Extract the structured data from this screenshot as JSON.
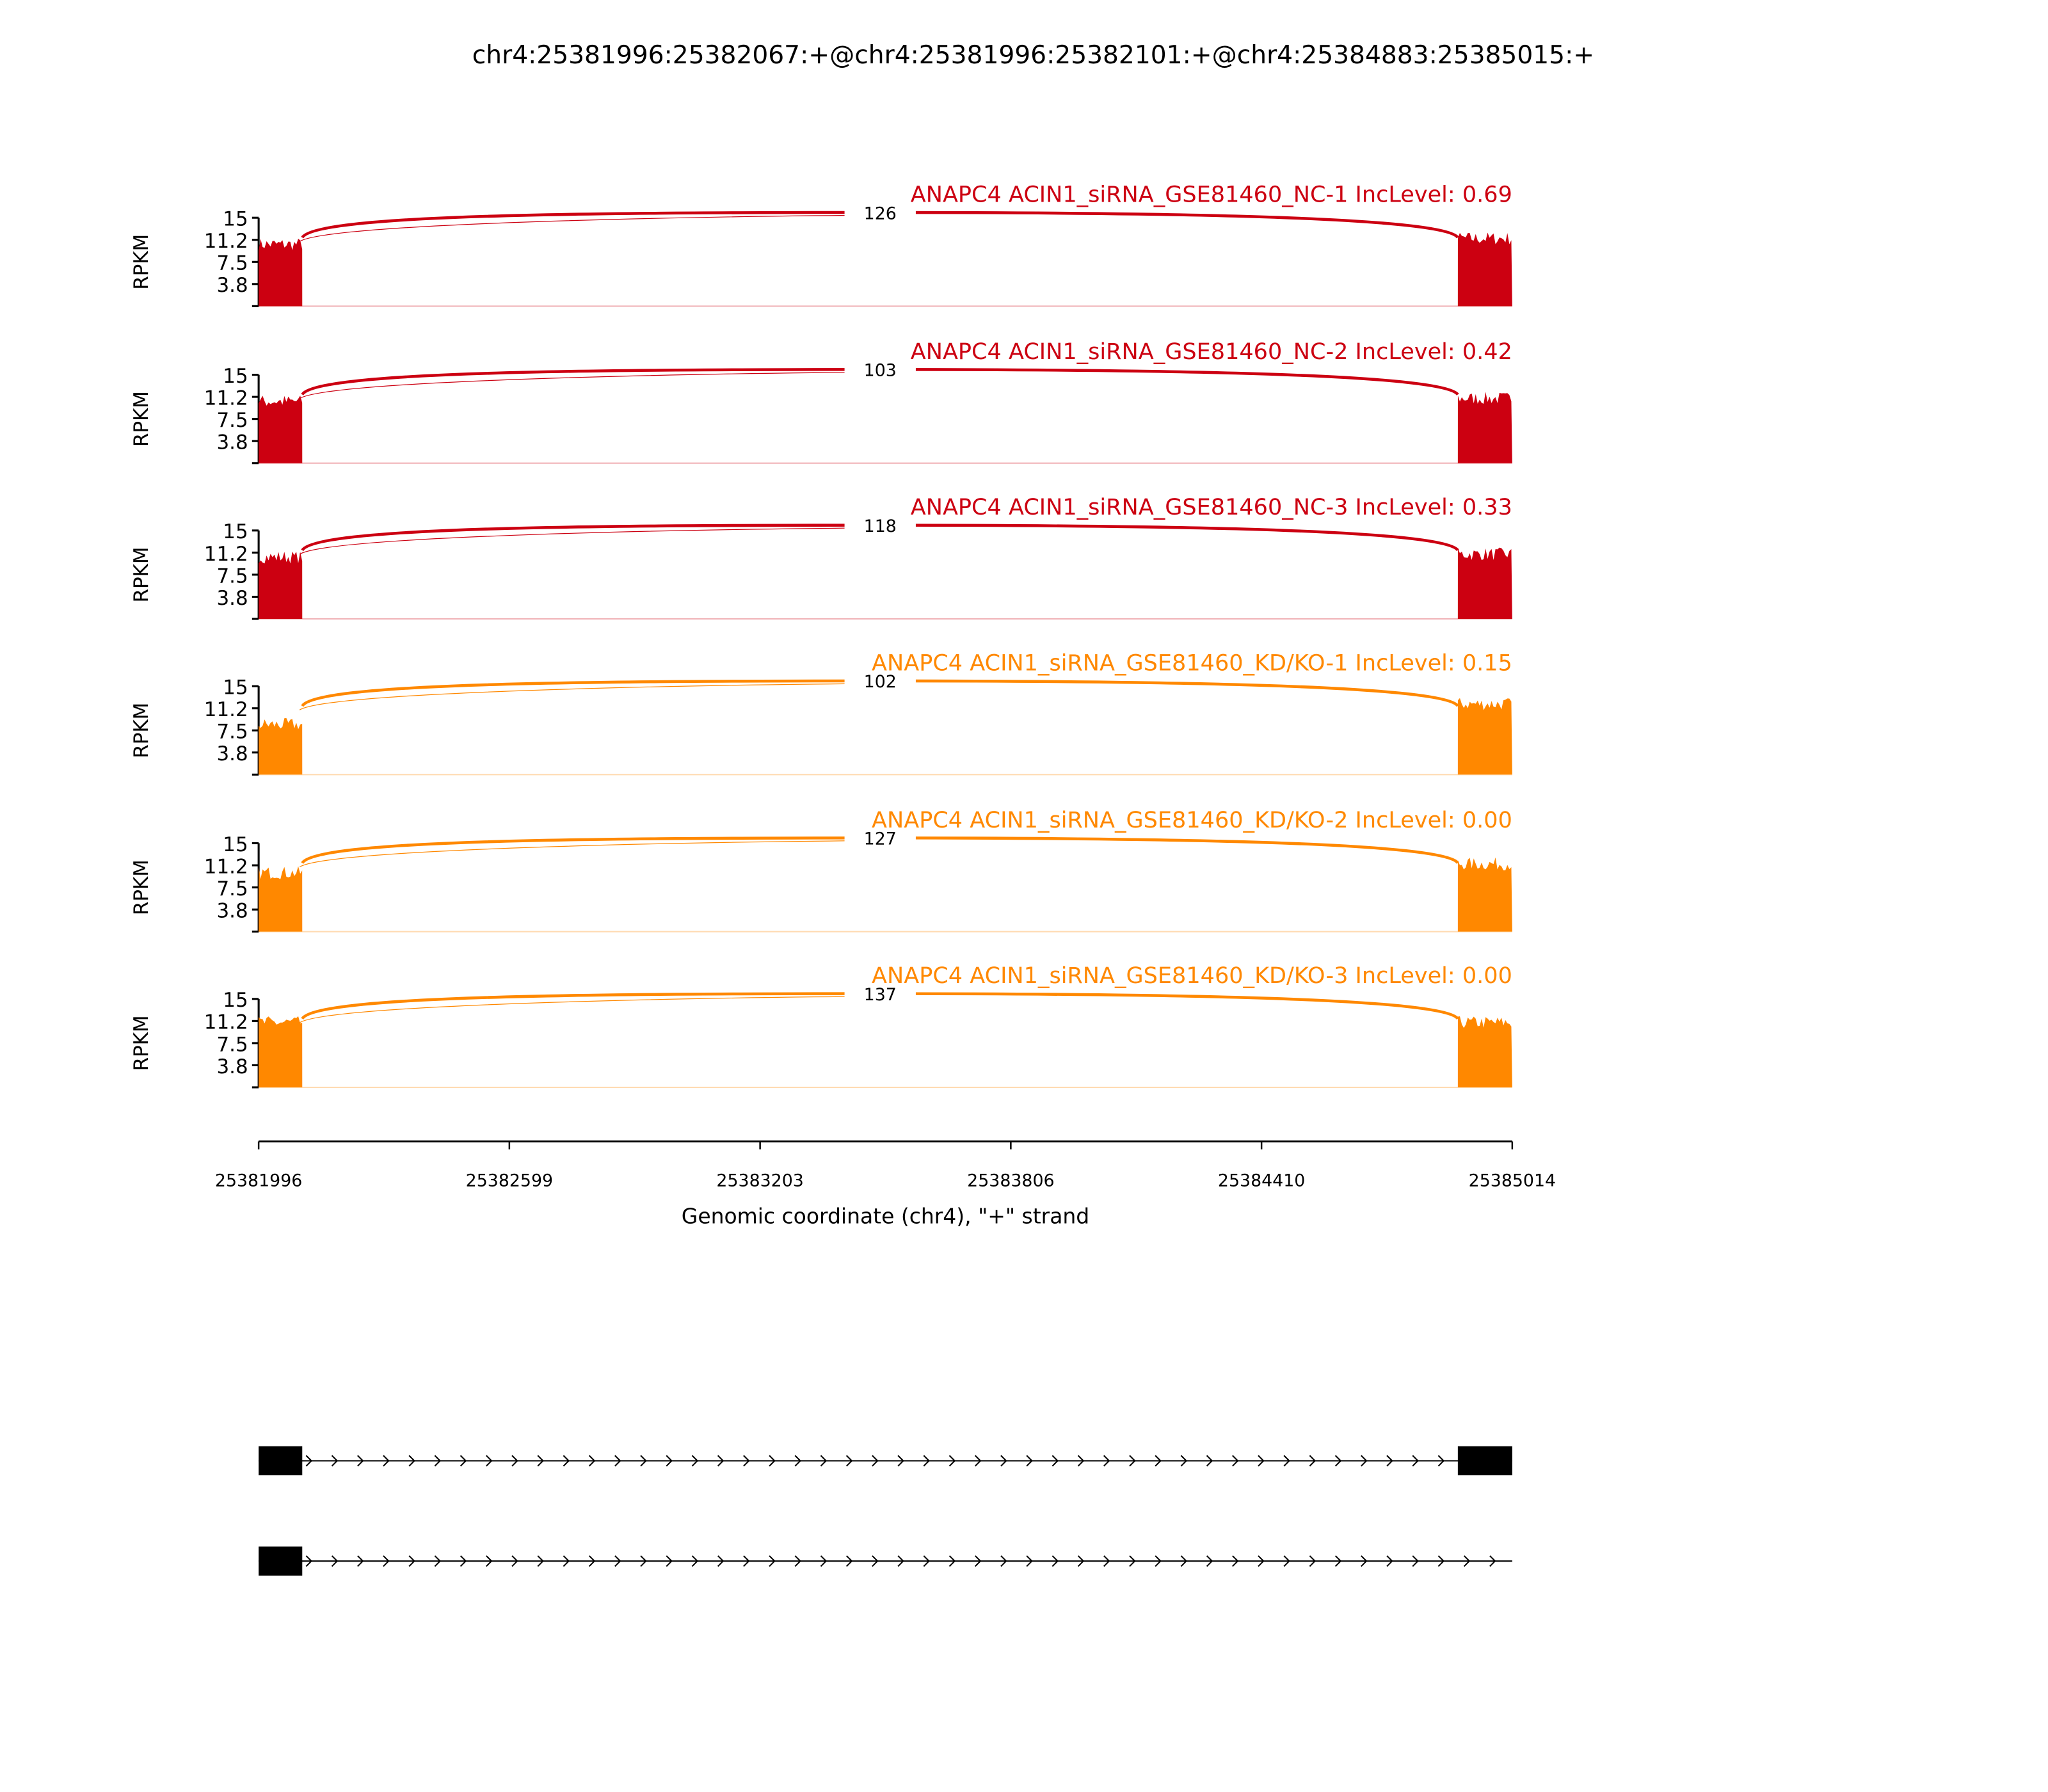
{
  "title": "chr4:25381996:25382067:+@chr4:25381996:25382101:+@chr4:25384883:25385015:+",
  "colors": {
    "nc": "#cc0011",
    "kd": "#ff8800",
    "axis": "#000000"
  },
  "chart_data": {
    "type": "area",
    "title": "chr4:25381996:25382067:+@chr4:25381996:25382101:+@chr4:25384883:25385015:+",
    "xlabel": "Genomic coordinate (chr4), \"+\" strand",
    "ylabel": "RPKM",
    "xlim": [
      25381996,
      25385014
    ],
    "x_ticks": [
      "25381996",
      "25382599",
      "25383203",
      "25383806",
      "25384410",
      "25385014"
    ],
    "ylim": [
      0,
      15
    ],
    "y_ticks": [
      "15",
      "11.2",
      "7.5",
      "3.8"
    ],
    "exons": [
      [
        25381996,
        25382101
      ],
      [
        25384883,
        25385015
      ]
    ],
    "panels": [
      {
        "label": "ANAPC4 ACIN1_siRNA_GSE81460_NC-1 IncLevel: 0.69",
        "group": "nc",
        "junction_count": "126",
        "left_exon_rpkm": 10.5,
        "right_exon_rpkm": 11.5
      },
      {
        "label": "ANAPC4 ACIN1_siRNA_GSE81460_NC-2 IncLevel: 0.42",
        "group": "nc",
        "junction_count": "103",
        "left_exon_rpkm": 10.5,
        "right_exon_rpkm": 11.0
      },
      {
        "label": "ANAPC4 ACIN1_siRNA_GSE81460_NC-3 IncLevel: 0.33",
        "group": "nc",
        "junction_count": "118",
        "left_exon_rpkm": 10.5,
        "right_exon_rpkm": 11.0
      },
      {
        "label": "ANAPC4 ACIN1_siRNA_GSE81460_KD/KO-1 IncLevel: 0.15",
        "group": "kd",
        "junction_count": "102",
        "left_exon_rpkm": 8.5,
        "right_exon_rpkm": 12.0
      },
      {
        "label": "ANAPC4 ACIN1_siRNA_GSE81460_KD/KO-2 IncLevel: 0.00",
        "group": "kd",
        "junction_count": "127",
        "left_exon_rpkm": 10.0,
        "right_exon_rpkm": 11.5
      },
      {
        "label": "ANAPC4 ACIN1_siRNA_GSE81460_KD/KO-3 IncLevel: 0.00",
        "group": "kd",
        "junction_count": "137",
        "left_exon_rpkm": 11.0,
        "right_exon_rpkm": 11.0
      }
    ],
    "gene_models": [
      {
        "exons": [
          [
            25381996,
            25382101
          ],
          [
            25384883,
            25385015
          ]
        ]
      },
      {
        "exons": [
          [
            25381996,
            25382101
          ]
        ]
      }
    ]
  }
}
